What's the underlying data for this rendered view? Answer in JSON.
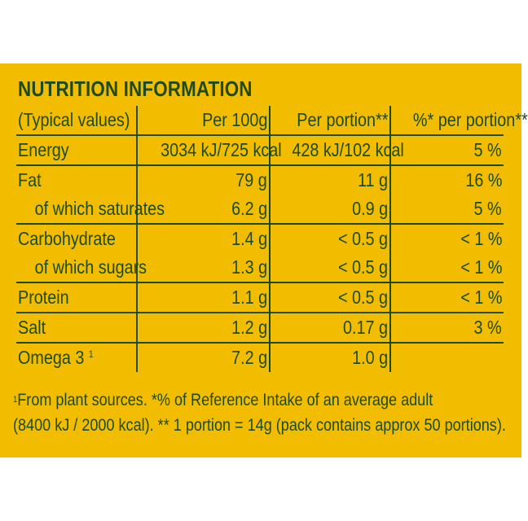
{
  "title": "NUTRITION INFORMATION",
  "header": {
    "col0": "(Typical values)",
    "col1": "Per 100g",
    "col2": "Per portion**",
    "col3": "%* per portion**"
  },
  "rows": [
    {
      "name": "Energy",
      "per100": "3034 kJ/725 kcal",
      "portion": "428 kJ/102 kcal",
      "ri": "5 %"
    },
    {
      "name": "Fat",
      "per100": "79 g",
      "portion": "11 g",
      "ri": "16 %"
    },
    {
      "name": "of which saturates",
      "per100": "6.2 g",
      "portion": "0.9 g",
      "ri": "5 %"
    },
    {
      "name": "Carbohydrate",
      "per100": "1.4 g",
      "portion": "< 0.5 g",
      "ri": "< 1 %"
    },
    {
      "name": "of which sugars",
      "per100": "1.3 g",
      "portion": "< 0.5 g",
      "ri": "< 1 %"
    },
    {
      "name": "Protein",
      "per100": "1.1 g",
      "portion": "< 0.5 g",
      "ri": "< 1 %"
    },
    {
      "name": "Salt",
      "per100": "1.2 g",
      "portion": "0.17 g",
      "ri": "3 %"
    },
    {
      "name": "Omega 3",
      "name_sup": "1",
      "per100": "7.2 g",
      "portion": "1.0 g",
      "ri": ""
    }
  ],
  "footnote": {
    "marker": "1",
    "line1": "From plant sources. *% of Reference Intake of an average adult",
    "line2": "(8400 kJ / 2000 kcal). ** 1 portion = 14g (pack contains approx 50 portions)."
  }
}
